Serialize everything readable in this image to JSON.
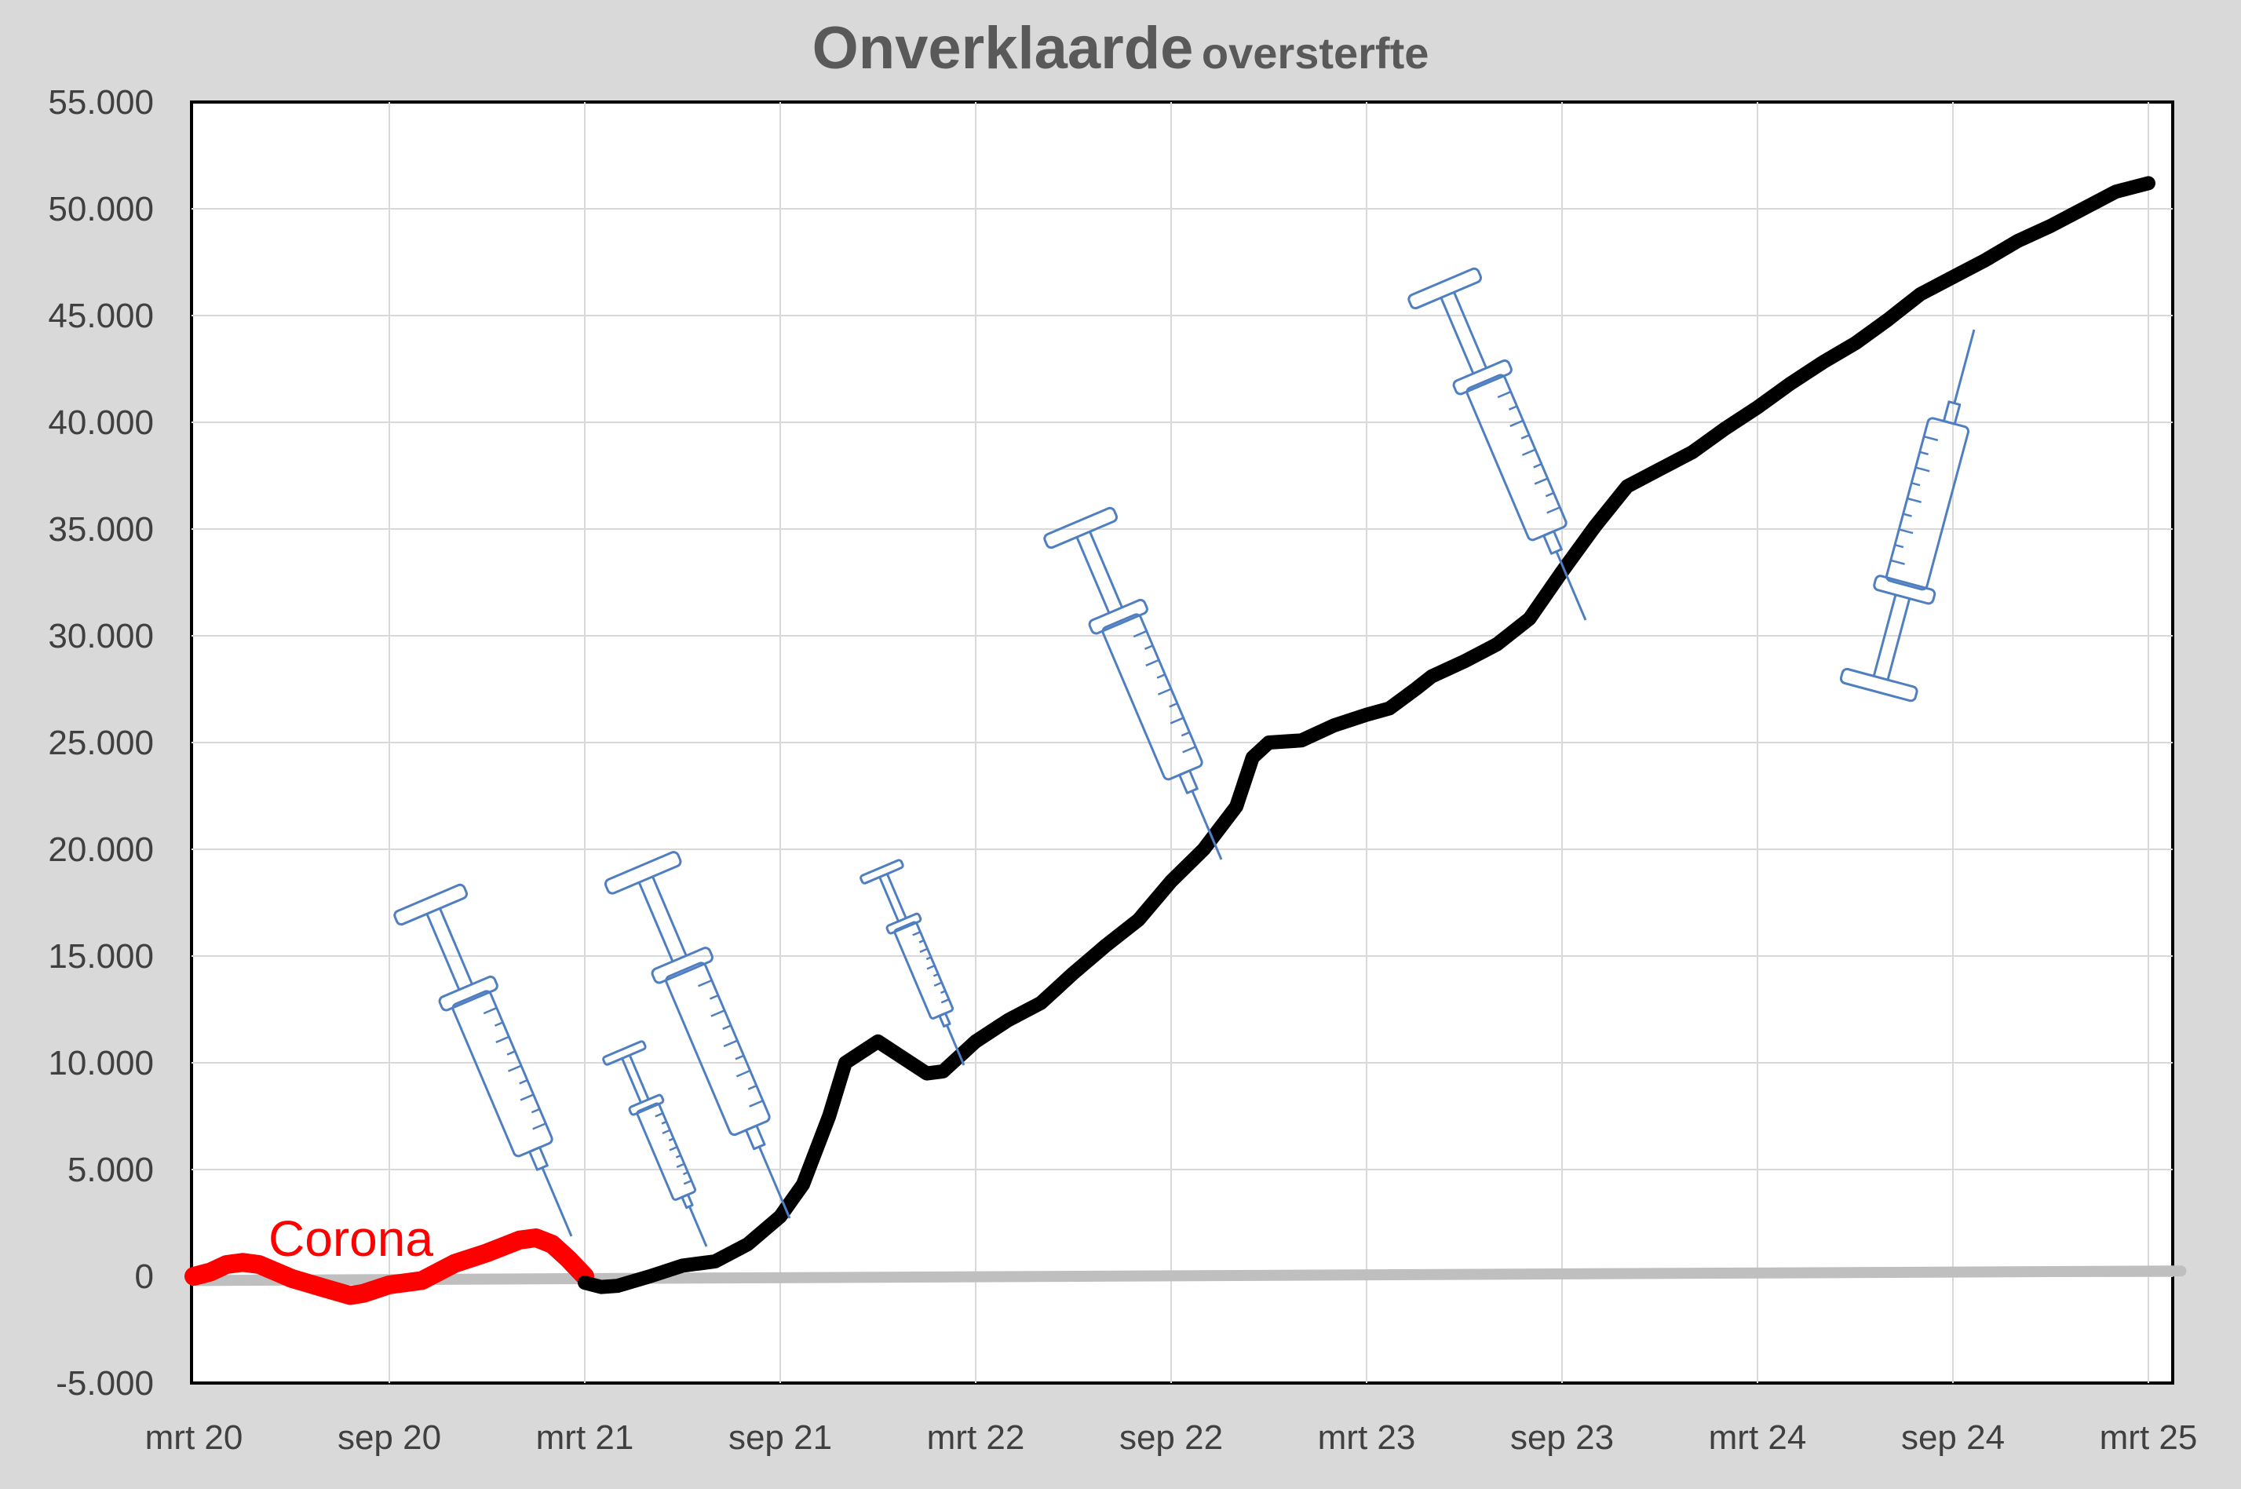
{
  "chart_data": {
    "type": "line",
    "title": "Onverklaarde",
    "subtitle": "oversterfte",
    "xlabel": "",
    "ylabel": "",
    "x_tick_labels": [
      "mrt 20",
      "sep 20",
      "mrt 21",
      "sep 21",
      "mrt 22",
      "sep 22",
      "mrt 23",
      "sep 23",
      "mrt 24",
      "sep 24",
      "mrt 25"
    ],
    "y_tick_labels": [
      "-5.000",
      "0",
      "5.000",
      "10.000",
      "15.000",
      "20.000",
      "25.000",
      "30.000",
      "35.000",
      "40.000",
      "45.000",
      "50.000",
      "55.000"
    ],
    "ylim": [
      -5000,
      55000
    ],
    "xlim_months": [
      0,
      61
    ],
    "grid": true,
    "annotations": [
      {
        "text": "Corona",
        "color": "#ff0000"
      }
    ],
    "series": [
      {
        "color": "#ff0000",
        "x_months": [
          0,
          0.5,
          1,
          1.5,
          2,
          3,
          4,
          4.8,
          5.2,
          6,
          7,
          8,
          9,
          10,
          10.5,
          11,
          11.5,
          12
        ],
        "values": [
          0,
          200,
          550,
          650,
          550,
          -100,
          -550,
          -900,
          -800,
          -400,
          -200,
          600,
          1100,
          1700,
          1800,
          1500,
          800,
          0
        ]
      },
      {
        "color": "#000000",
        "x_months": [
          12,
          12.5,
          13,
          14,
          15,
          16,
          17,
          18,
          18.7,
          19.5,
          20,
          21,
          22,
          22.5,
          23,
          24,
          25,
          26,
          26.5,
          27,
          28,
          29,
          30,
          31,
          32,
          32.5,
          33,
          34,
          35,
          36,
          36.7,
          37.5,
          38,
          39,
          40,
          41,
          42,
          43,
          44,
          45,
          46,
          47,
          48,
          49,
          50,
          51,
          52,
          53,
          54,
          55,
          56,
          57,
          58,
          59,
          60
        ],
        "values": [
          -300,
          -500,
          -450,
          0,
          500,
          700,
          1500,
          2800,
          4300,
          7500,
          10000,
          11000,
          10000,
          9500,
          9600,
          11000,
          12000,
          12800,
          13500,
          14200,
          15500,
          16700,
          18500,
          20000,
          22000,
          24300,
          25000,
          25100,
          25800,
          26300,
          26600,
          27500,
          28100,
          28800,
          29600,
          30800,
          33000,
          35100,
          37000,
          37800,
          38600,
          39700,
          40700,
          41800,
          42800,
          43700,
          44800,
          46000,
          46800,
          47600,
          48500,
          49200,
          50000,
          50800,
          51200
        ]
      },
      {
        "color": "#bfbfbf",
        "x_months": [
          0,
          61
        ],
        "values": [
          -200,
          250
        ]
      }
    ]
  },
  "colors": {
    "background": "#d9d9d9",
    "plot": "#ffffff",
    "grid": "#d9d9d9",
    "syringe": "#4f7fc0"
  }
}
